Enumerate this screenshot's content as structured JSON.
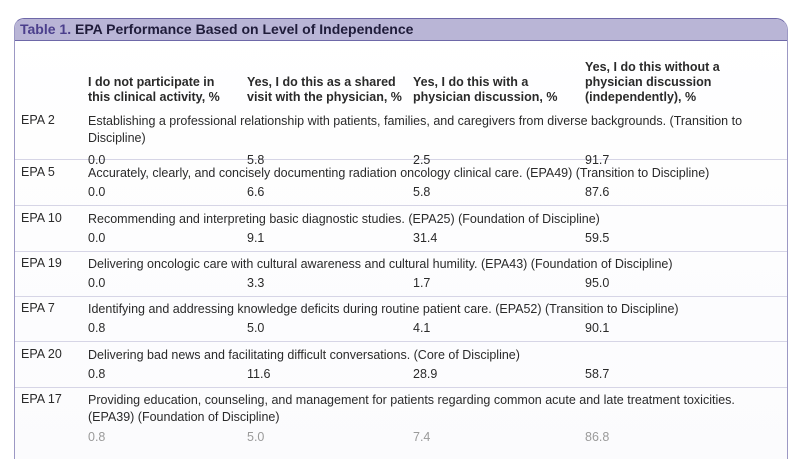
{
  "table": {
    "title_num": "Table 1.",
    "title": " EPA Performance Based on Level of Independence",
    "headers": [
      "I do not participate in this clinical activity, %",
      "Yes, I do this as a shared visit with the physician, %",
      "Yes, I do this with a physician discussion, %",
      "Yes, I do this without a physician discussion (independently), %"
    ],
    "rows": [
      {
        "epa": "EPA 2",
        "desc": "Establishing a professional relationship with patients, families, and caregivers from diverse backgrounds. (Transition to Discipline)",
        "values": [
          "0.0",
          "5.8",
          "2.5",
          "91.7"
        ]
      },
      {
        "epa": "EPA 5",
        "desc": "Accurately, clearly, and concisely documenting radiation oncology clinical care. (EPA49) (Transition to Discipline)",
        "values": [
          "0.0",
          "6.6",
          "5.8",
          "87.6"
        ]
      },
      {
        "epa": "EPA 10",
        "desc": "Recommending and interpreting basic diagnostic studies. (EPA25) (Foundation of Discipline)",
        "values": [
          "0.0",
          "9.1",
          "31.4",
          "59.5"
        ]
      },
      {
        "epa": "EPA 19",
        "desc": "Delivering oncologic care with cultural awareness and cultural humility. (EPA43) (Foundation of Discipline)",
        "values": [
          "0.0",
          "3.3",
          "1.7",
          "95.0"
        ]
      },
      {
        "epa": "EPA 7",
        "desc": "Identifying and addressing knowledge deficits during routine patient care. (EPA52) (Transition to Discipline)",
        "values": [
          "0.8",
          "5.0",
          "4.1",
          "90.1"
        ]
      },
      {
        "epa": "EPA 20",
        "desc": "Delivering bad news and facilitating difficult conversations. (Core of Discipline)",
        "values": [
          "0.8",
          "11.6",
          "28.9",
          "58.7"
        ]
      },
      {
        "epa": "EPA 17",
        "desc": "Providing education, counseling, and management for patients regarding common acute and late treatment toxicities. (EPA39) (Foundation of Discipline)",
        "values": [
          "0.8",
          "5.0",
          "7.4",
          "86.8"
        ]
      }
    ]
  }
}
